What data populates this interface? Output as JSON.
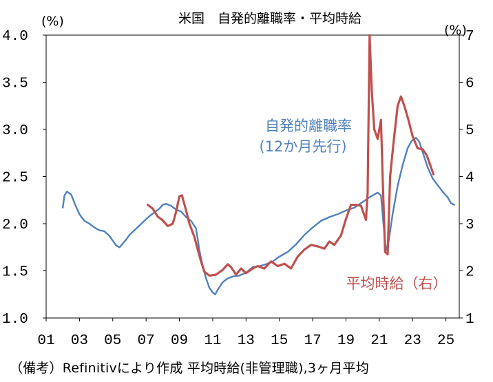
{
  "chart_data": {
    "type": "line",
    "title": "米国　自発的離職率・平均時給",
    "caption": "（備考）Refinitivにより作成 平均時給(非管理職),3ヶ月平均",
    "y_left": {
      "unit": "(%)",
      "ylim": [
        1.0,
        4.0
      ],
      "ticks": [
        "1.0",
        "1.5",
        "2.0",
        "2.5",
        "3.0",
        "3.5",
        "4.0"
      ]
    },
    "y_right": {
      "unit": "(%)",
      "ylim": [
        1,
        7
      ],
      "ticks": [
        "1",
        "2",
        "3",
        "4",
        "5",
        "6",
        "7"
      ]
    },
    "x": {
      "xlim": [
        2001,
        2025.8
      ],
      "ticks": [
        "01",
        "03",
        "05",
        "07",
        "09",
        "11",
        "13",
        "15",
        "17",
        "19",
        "21",
        "23",
        "25"
      ]
    },
    "grid": false,
    "series": [
      {
        "name": "自発的離職率（12か月先行）",
        "label_lines": [
          "自発的離職率",
          "(12か月先行)"
        ],
        "axis": "left",
        "color": "#4F81BD",
        "points": [
          [
            2002.0,
            2.17
          ],
          [
            2002.1,
            2.3
          ],
          [
            2002.25,
            2.34
          ],
          [
            2002.5,
            2.31
          ],
          [
            2002.75,
            2.2
          ],
          [
            2003.0,
            2.1
          ],
          [
            2003.3,
            2.03
          ],
          [
            2003.6,
            2.0
          ],
          [
            2003.9,
            1.96
          ],
          [
            2004.2,
            1.93
          ],
          [
            2004.5,
            1.92
          ],
          [
            2004.8,
            1.87
          ],
          [
            2005.0,
            1.82
          ],
          [
            2005.2,
            1.77
          ],
          [
            2005.4,
            1.75
          ],
          [
            2005.6,
            1.79
          ],
          [
            2005.8,
            1.83
          ],
          [
            2006.0,
            1.88
          ],
          [
            2006.3,
            1.93
          ],
          [
            2006.6,
            1.98
          ],
          [
            2006.9,
            2.03
          ],
          [
            2007.2,
            2.08
          ],
          [
            2007.5,
            2.12
          ],
          [
            2007.8,
            2.16
          ],
          [
            2008.0,
            2.2
          ],
          [
            2008.2,
            2.21
          ],
          [
            2008.5,
            2.19
          ],
          [
            2008.8,
            2.15
          ],
          [
            2009.1,
            2.13
          ],
          [
            2009.4,
            2.07
          ],
          [
            2009.7,
            2.03
          ],
          [
            2010.0,
            1.95
          ],
          [
            2010.2,
            1.72
          ],
          [
            2010.4,
            1.55
          ],
          [
            2010.6,
            1.42
          ],
          [
            2010.8,
            1.32
          ],
          [
            2011.0,
            1.27
          ],
          [
            2011.15,
            1.25
          ],
          [
            2011.3,
            1.3
          ],
          [
            2011.6,
            1.38
          ],
          [
            2011.9,
            1.42
          ],
          [
            2012.2,
            1.44
          ],
          [
            2012.6,
            1.45
          ],
          [
            2013.0,
            1.48
          ],
          [
            2013.4,
            1.54
          ],
          [
            2013.8,
            1.55
          ],
          [
            2014.2,
            1.57
          ],
          [
            2014.6,
            1.6
          ],
          [
            2015.0,
            1.65
          ],
          [
            2015.5,
            1.7
          ],
          [
            2016.0,
            1.78
          ],
          [
            2016.5,
            1.88
          ],
          [
            2017.0,
            1.96
          ],
          [
            2017.5,
            2.03
          ],
          [
            2018.0,
            2.07
          ],
          [
            2018.5,
            2.1
          ],
          [
            2019.0,
            2.14
          ],
          [
            2019.5,
            2.17
          ],
          [
            2020.0,
            2.23
          ],
          [
            2020.5,
            2.29
          ],
          [
            2020.9,
            2.33
          ],
          [
            2021.1,
            2.3
          ],
          [
            2021.25,
            2.0
          ],
          [
            2021.4,
            1.72
          ],
          [
            2021.55,
            1.8
          ],
          [
            2021.8,
            2.1
          ],
          [
            2022.1,
            2.4
          ],
          [
            2022.4,
            2.62
          ],
          [
            2022.7,
            2.8
          ],
          [
            2022.95,
            2.88
          ],
          [
            2023.2,
            2.91
          ],
          [
            2023.4,
            2.87
          ],
          [
            2023.6,
            2.76
          ],
          [
            2023.9,
            2.6
          ],
          [
            2024.2,
            2.48
          ],
          [
            2024.5,
            2.41
          ],
          [
            2024.8,
            2.34
          ],
          [
            2025.1,
            2.28
          ],
          [
            2025.3,
            2.22
          ],
          [
            2025.5,
            2.2
          ]
        ]
      },
      {
        "name": "平均時給（右）",
        "label_lines": [
          "平均時給（右）"
        ],
        "axis": "right",
        "color": "#C0504D",
        "points": [
          [
            2007.1,
            3.4
          ],
          [
            2007.4,
            3.32
          ],
          [
            2007.7,
            3.15
          ],
          [
            2008.0,
            3.07
          ],
          [
            2008.3,
            2.95
          ],
          [
            2008.6,
            3.0
          ],
          [
            2008.8,
            3.25
          ],
          [
            2009.0,
            3.58
          ],
          [
            2009.15,
            3.6
          ],
          [
            2009.35,
            3.35
          ],
          [
            2009.6,
            3.0
          ],
          [
            2009.9,
            2.72
          ],
          [
            2010.1,
            2.45
          ],
          [
            2010.3,
            2.2
          ],
          [
            2010.5,
            1.98
          ],
          [
            2010.8,
            1.9
          ],
          [
            2011.2,
            1.92
          ],
          [
            2011.6,
            2.02
          ],
          [
            2011.9,
            2.14
          ],
          [
            2012.1,
            2.08
          ],
          [
            2012.4,
            1.92
          ],
          [
            2012.7,
            2.05
          ],
          [
            2013.0,
            1.95
          ],
          [
            2013.4,
            2.05
          ],
          [
            2013.7,
            2.1
          ],
          [
            2014.1,
            2.05
          ],
          [
            2014.5,
            2.2
          ],
          [
            2014.9,
            2.1
          ],
          [
            2015.3,
            2.15
          ],
          [
            2015.7,
            2.05
          ],
          [
            2016.1,
            2.3
          ],
          [
            2016.5,
            2.45
          ],
          [
            2016.9,
            2.55
          ],
          [
            2017.3,
            2.52
          ],
          [
            2017.7,
            2.47
          ],
          [
            2018.0,
            2.62
          ],
          [
            2018.3,
            2.55
          ],
          [
            2018.7,
            2.75
          ],
          [
            2019.0,
            3.1
          ],
          [
            2019.3,
            3.4
          ],
          [
            2019.6,
            3.4
          ],
          [
            2019.9,
            3.38
          ],
          [
            2020.2,
            3.08
          ],
          [
            2020.3,
            3.65
          ],
          [
            2020.42,
            7.0
          ],
          [
            2020.55,
            5.8
          ],
          [
            2020.7,
            5.0
          ],
          [
            2020.9,
            4.8
          ],
          [
            2021.1,
            5.2
          ],
          [
            2021.2,
            4.0
          ],
          [
            2021.35,
            2.4
          ],
          [
            2021.5,
            2.35
          ],
          [
            2021.65,
            4.0
          ],
          [
            2021.85,
            4.7
          ],
          [
            2022.1,
            5.5
          ],
          [
            2022.3,
            5.7
          ],
          [
            2022.5,
            5.5
          ],
          [
            2022.75,
            5.2
          ],
          [
            2023.0,
            4.85
          ],
          [
            2023.3,
            4.6
          ],
          [
            2023.6,
            4.58
          ],
          [
            2023.85,
            4.45
          ],
          [
            2024.05,
            4.25
          ],
          [
            2024.25,
            4.05
          ]
        ]
      }
    ]
  }
}
